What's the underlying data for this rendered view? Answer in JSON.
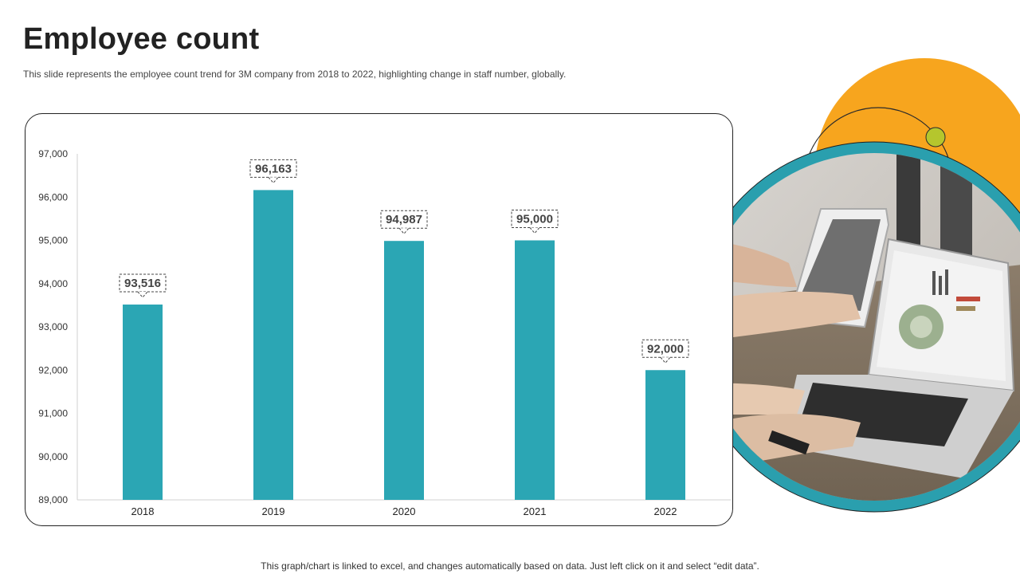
{
  "header": {
    "title": "Employee count",
    "subtitle": "This slide represents the employee count trend for 3M company from 2018 to 2022, highlighting change in staff number, globally."
  },
  "footer": {
    "note": "This graph/chart is linked to excel, and changes automatically based on data. Just left click on it and select “edit data”."
  },
  "colors": {
    "bar": "#2BA6B4",
    "accent_orange": "#F7A51E",
    "ring_teal": "#2A9FAE",
    "dot_green": "#B5C62D"
  },
  "chart_data": {
    "type": "bar",
    "title": "",
    "xlabel": "",
    "ylabel": "",
    "categories": [
      "2018",
      "2019",
      "2020",
      "2021",
      "2022"
    ],
    "values": [
      93516,
      96163,
      94987,
      95000,
      92000
    ],
    "data_labels": [
      "93,516",
      "96,163",
      "94,987",
      "95,000",
      "92,000"
    ],
    "ylim": [
      89000,
      97000
    ],
    "yticks": [
      89000,
      90000,
      91000,
      92000,
      93000,
      94000,
      95000,
      96000,
      97000
    ],
    "ytick_labels": [
      "89,000",
      "90,000",
      "91,000",
      "92,000",
      "93,000",
      "94,000",
      "95,000",
      "96,000",
      "97,000"
    ],
    "grid": false,
    "legend": "none"
  }
}
